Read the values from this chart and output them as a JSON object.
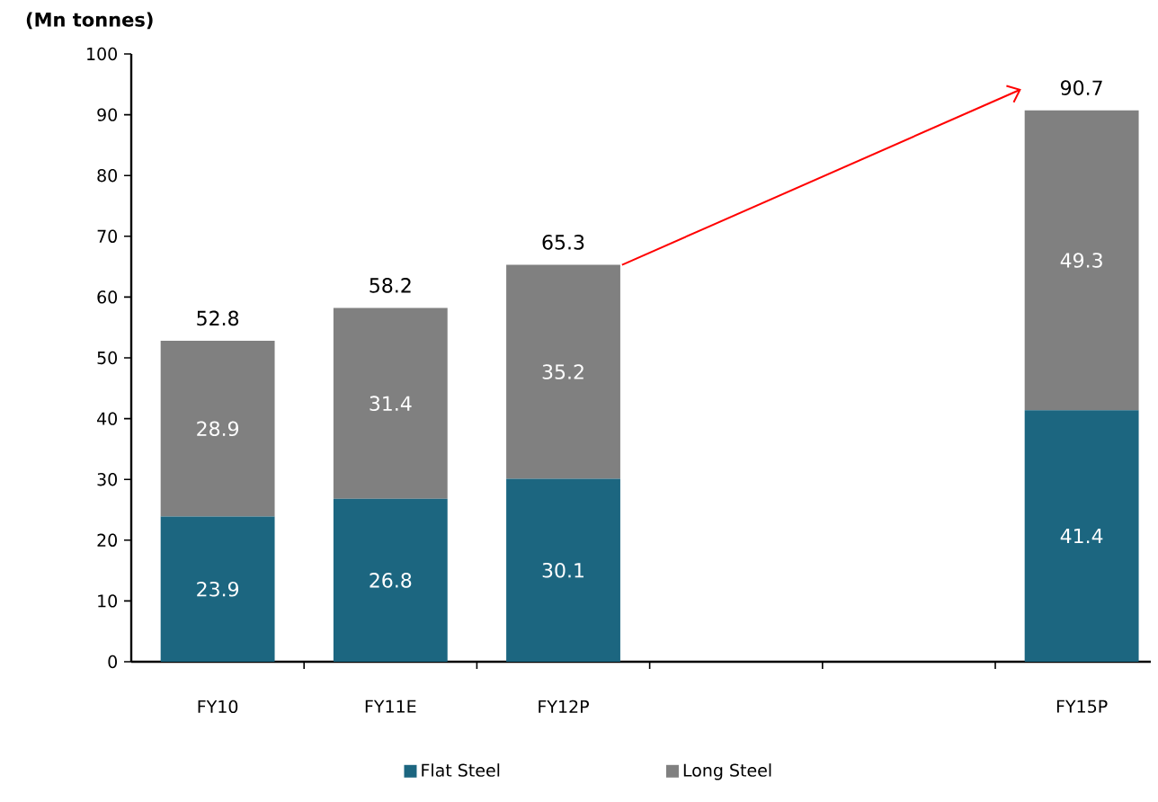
{
  "chart_data": {
    "type": "bar",
    "stacked": true,
    "ylabel": "(Mn tonnes)",
    "categories": [
      "FY10",
      "FY11E",
      "FY12P",
      null,
      null,
      "FY15P"
    ],
    "series": [
      {
        "name": "Flat Steel",
        "color": "#1c6680",
        "values": [
          23.9,
          26.8,
          30.1,
          null,
          null,
          41.4
        ]
      },
      {
        "name": "Long Steel",
        "color": "#808080",
        "values": [
          28.9,
          31.4,
          35.2,
          null,
          null,
          49.3
        ]
      }
    ],
    "totals": [
      "52.8",
      "58.2",
      "65.3",
      null,
      null,
      "90.7"
    ],
    "data_labels": true,
    "ylim": [
      0,
      100
    ],
    "yticks": [
      0,
      10,
      20,
      30,
      40,
      50,
      60,
      70,
      80,
      90,
      100
    ],
    "grid": false,
    "legend": "bottom"
  }
}
